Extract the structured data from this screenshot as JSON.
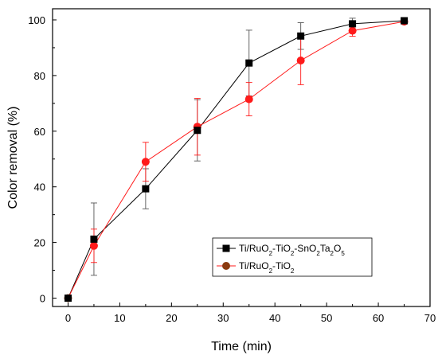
{
  "chart_data": {
    "type": "line",
    "title": "",
    "xlabel": "Time (min)",
    "ylabel": "Color removal (%)",
    "xlim": [
      -3,
      70
    ],
    "ylim": [
      -3,
      104
    ],
    "xticks": [
      0,
      10,
      20,
      30,
      40,
      50,
      60,
      70
    ],
    "yticks": [
      0,
      20,
      40,
      60,
      80,
      100
    ],
    "grid": false,
    "legend_position": "bottom-right",
    "series": [
      {
        "name_parts": [
          {
            "t": "Ti/RuO"
          },
          {
            "t": "2",
            "sub": true
          },
          {
            "t": "-TiO"
          },
          {
            "t": "2",
            "sub": true
          },
          {
            "t": "-SnO"
          },
          {
            "t": "2",
            "sub": true
          },
          {
            "t": "Ta"
          },
          {
            "t": "2",
            "sub": true
          },
          {
            "t": "O"
          },
          {
            "t": "5",
            "sub": true
          }
        ],
        "color": "#000000",
        "marker": "square",
        "points": [
          {
            "x": 0,
            "y": 0,
            "err": 0
          },
          {
            "x": 5,
            "y": 21.2,
            "err": 13
          },
          {
            "x": 15,
            "y": 39.3,
            "err": 7.2
          },
          {
            "x": 25,
            "y": 60.3,
            "err": 11
          },
          {
            "x": 35,
            "y": 84.5,
            "err": 11.8
          },
          {
            "x": 45,
            "y": 94.2,
            "err": 4.8
          },
          {
            "x": 55,
            "y": 98.6,
            "err": 2
          },
          {
            "x": 65,
            "y": 99.7,
            "err": 0.8
          }
        ]
      },
      {
        "name_parts": [
          {
            "t": "Ti/RuO"
          },
          {
            "t": "2",
            "sub": true
          },
          {
            "t": "-TiO"
          },
          {
            "t": "2",
            "sub": true
          }
        ],
        "color": "#ff1a1a",
        "marker": "circle",
        "legend_marker_color": "#8b3a0f",
        "points": [
          {
            "x": 0,
            "y": 0,
            "err": 0
          },
          {
            "x": 5,
            "y": 18.8,
            "err": 6
          },
          {
            "x": 15,
            "y": 49.0,
            "err": 7
          },
          {
            "x": 25,
            "y": 61.6,
            "err": 10.2
          },
          {
            "x": 35,
            "y": 71.5,
            "err": 6
          },
          {
            "x": 45,
            "y": 85.4,
            "err": 8.7
          },
          {
            "x": 55,
            "y": 96.1,
            "err": 2
          },
          {
            "x": 65,
            "y": 99.4,
            "err": 0.8
          }
        ]
      }
    ]
  }
}
